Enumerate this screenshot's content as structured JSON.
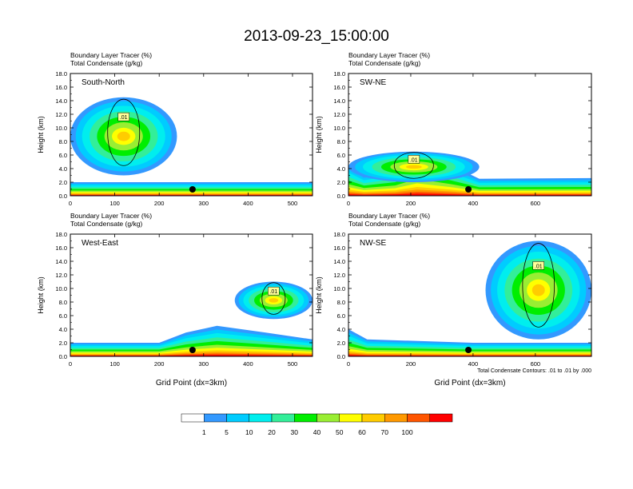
{
  "title": "2013-09-23_15:00:00",
  "subtitle_line1": "Boundary Layer Tracer   (%)",
  "subtitle_line2": "Total Condensate   (g/kg)",
  "ylabel": "Height (km)",
  "xlabel": "Grid Point (dx=3km)",
  "contour_note": "Total Condensate Contours: .01 to .01 by .000",
  "contour_label": ".01",
  "colorbar": {
    "labels": [
      "1",
      "5",
      "10",
      "20",
      "30",
      "40",
      "50",
      "60",
      "70",
      "100"
    ],
    "colors": [
      "#ffffff",
      "#3399ff",
      "#00ccff",
      "#00eeee",
      "#33ee99",
      "#00ee00",
      "#99ee33",
      "#ffff00",
      "#ffcc00",
      "#ff9900",
      "#ff5500",
      "#ff0000"
    ]
  },
  "chart_data": [
    {
      "type": "heatmap",
      "panel_label": "South-North",
      "xlim": [
        0,
        545
      ],
      "ylim": [
        0,
        18
      ],
      "xticks": [
        "0",
        "100",
        "200",
        "300",
        "400",
        "500"
      ],
      "yticks": [
        "0.0",
        "2.0",
        "4.0",
        "6.0",
        "8.0",
        "10.0",
        "12.0",
        "14.0",
        "16.0",
        "18.0"
      ],
      "marker_x": 275,
      "surface_band_top_km": [
        [
          0,
          2.0
        ],
        [
          100,
          2.0
        ],
        [
          200,
          2.0
        ],
        [
          250,
          2.0
        ],
        [
          400,
          2.0
        ],
        [
          545,
          2.0
        ]
      ],
      "tracer_cloud": {
        "x_range": [
          0,
          240
        ],
        "top_km": 14.5
      }
    },
    {
      "type": "heatmap",
      "panel_label": "SW-NE",
      "xlim": [
        0,
        780
      ],
      "ylim": [
        0,
        18
      ],
      "xticks": [
        "0",
        "200",
        "400",
        "600"
      ],
      "yticks": [
        "0.0",
        "2.0",
        "4.0",
        "6.0",
        "8.0",
        "10.0",
        "12.0",
        "14.0",
        "16.0",
        "18.0"
      ],
      "marker_x": 385,
      "surface_band_top_km": [
        [
          0,
          4.5
        ],
        [
          50,
          3.0
        ],
        [
          150,
          4.0
        ],
        [
          220,
          6.5
        ],
        [
          330,
          4.5
        ],
        [
          420,
          2.5
        ],
        [
          780,
          2.6
        ]
      ],
      "tracer_cloud": {
        "x_range": [
          0,
          420
        ],
        "top_km": 6.5
      }
    },
    {
      "type": "heatmap",
      "panel_label": "West-East",
      "xlim": [
        0,
        545
      ],
      "ylim": [
        0,
        18
      ],
      "xticks": [
        "0",
        "100",
        "200",
        "300",
        "400",
        "500"
      ],
      "yticks": [
        "0.0",
        "2.0",
        "4.0",
        "6.0",
        "8.0",
        "10.0",
        "12.0",
        "14.0",
        "16.0",
        "18.0"
      ],
      "marker_x": 275,
      "surface_band_top_km": [
        [
          0,
          2.0
        ],
        [
          200,
          2.0
        ],
        [
          260,
          3.5
        ],
        [
          330,
          4.5
        ],
        [
          440,
          3.5
        ],
        [
          545,
          2.5
        ]
      ],
      "tracer_cloud": {
        "x_range": [
          370,
          545
        ],
        "top_km": 11.0
      }
    },
    {
      "type": "heatmap",
      "panel_label": "NW-SE",
      "xlim": [
        0,
        780
      ],
      "ylim": [
        0,
        18
      ],
      "xticks": [
        "0",
        "200",
        "400",
        "600"
      ],
      "yticks": [
        "0.0",
        "2.0",
        "4.0",
        "6.0",
        "8.0",
        "10.0",
        "12.0",
        "14.0",
        "16.0",
        "18.0"
      ],
      "marker_x": 385,
      "surface_band_top_km": [
        [
          0,
          4.0
        ],
        [
          60,
          2.5
        ],
        [
          400,
          2.0
        ],
        [
          780,
          2.0
        ]
      ],
      "tracer_cloud": {
        "x_range": [
          440,
          780
        ],
        "top_km": 17.0
      }
    }
  ]
}
